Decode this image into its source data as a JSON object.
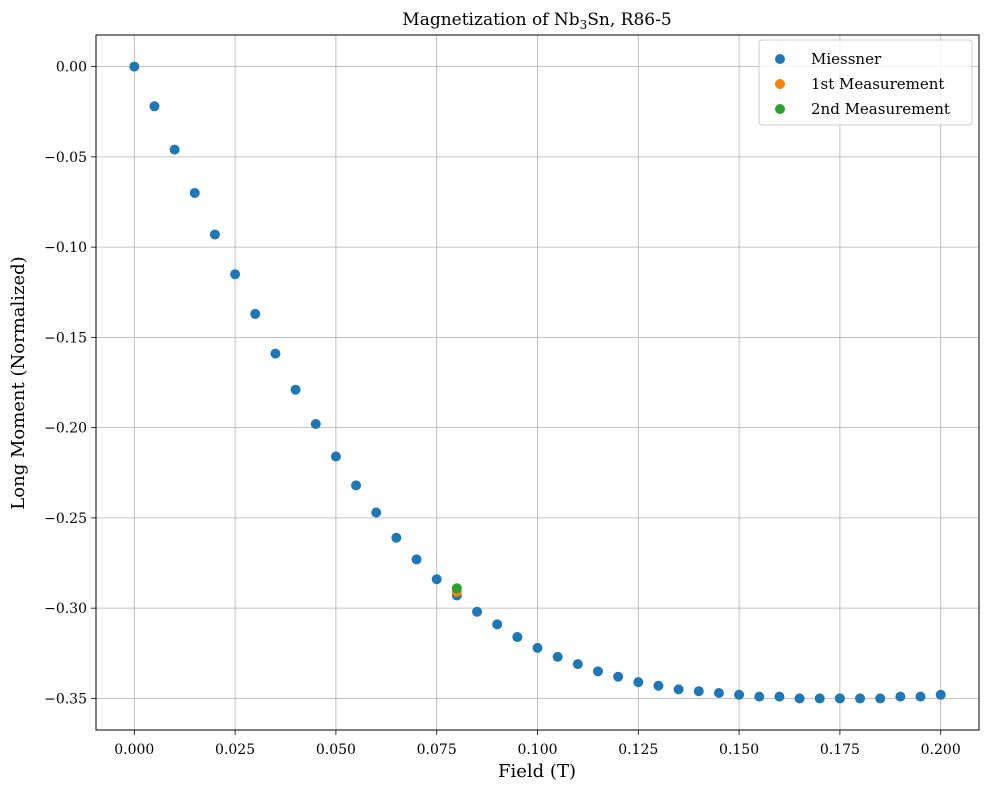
{
  "chart_data": {
    "type": "scatter",
    "title_main": "Magnetization of Nb",
    "title_sub": "3",
    "title_tail": "Sn, R86-5",
    "xlabel": "Field (T)",
    "ylabel": "Long Moment (Normalized)",
    "xlim": [
      -0.0095,
      0.2095
    ],
    "ylim": [
      -0.3675,
      0.0175
    ],
    "xticks": [
      0.0,
      0.025,
      0.05,
      0.075,
      0.1,
      0.125,
      0.15,
      0.175,
      0.2
    ],
    "xtick_labels": [
      "0.000",
      "0.025",
      "0.050",
      "0.075",
      "0.100",
      "0.125",
      "0.150",
      "0.175",
      "0.200"
    ],
    "yticks": [
      0.0,
      -0.05,
      -0.1,
      -0.15,
      -0.2,
      -0.25,
      -0.3,
      -0.35
    ],
    "ytick_labels": [
      "0.00",
      "−0.05",
      "−0.10",
      "−0.15",
      "−0.20",
      "−0.25",
      "−0.30",
      "−0.35"
    ],
    "grid": true,
    "legend_position": "top-right",
    "series": [
      {
        "name": "Miessner",
        "color": "#1f77b4",
        "x": [
          0.0,
          0.005,
          0.01,
          0.015,
          0.02,
          0.025,
          0.03,
          0.035,
          0.04,
          0.045,
          0.05,
          0.055,
          0.06,
          0.065,
          0.07,
          0.075,
          0.08,
          0.085,
          0.09,
          0.095,
          0.1,
          0.105,
          0.11,
          0.115,
          0.12,
          0.125,
          0.13,
          0.135,
          0.14,
          0.145,
          0.15,
          0.155,
          0.16,
          0.165,
          0.17,
          0.175,
          0.18,
          0.185,
          0.19,
          0.195,
          0.2
        ],
        "y": [
          0.0,
          -0.022,
          -0.046,
          -0.07,
          -0.093,
          -0.115,
          -0.137,
          -0.159,
          -0.179,
          -0.198,
          -0.216,
          -0.232,
          -0.247,
          -0.261,
          -0.273,
          -0.284,
          -0.293,
          -0.302,
          -0.309,
          -0.316,
          -0.322,
          -0.327,
          -0.331,
          -0.335,
          -0.338,
          -0.341,
          -0.343,
          -0.345,
          -0.346,
          -0.347,
          -0.348,
          -0.349,
          -0.349,
          -0.35,
          -0.35,
          -0.35,
          -0.35,
          -0.35,
          -0.349,
          -0.349,
          -0.348
        ]
      },
      {
        "name": "1st Measurement",
        "color": "#ff7f0e",
        "x": [
          0.08
        ],
        "y": [
          -0.291
        ]
      },
      {
        "name": "2nd Measurement",
        "color": "#2ca02c",
        "x": [
          0.08
        ],
        "y": [
          -0.289
        ]
      }
    ]
  }
}
